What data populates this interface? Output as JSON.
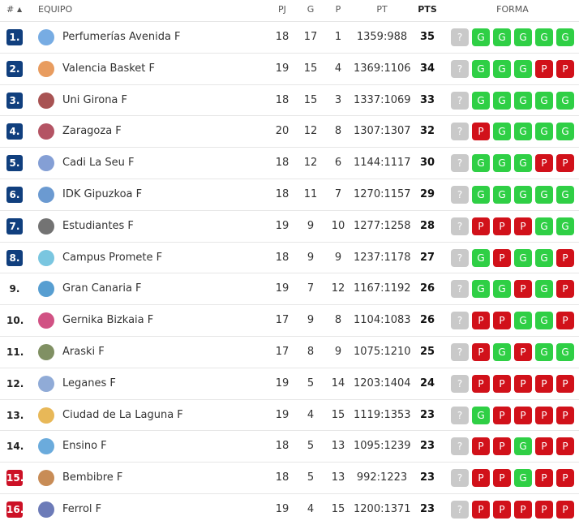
{
  "table": {
    "headers": {
      "rank": "#",
      "team": "EQUIPO",
      "pj": "PJ",
      "g": "G",
      "p": "P",
      "pt": "PT",
      "pts": "PTS",
      "form": "FORMA"
    },
    "form_colors": {
      "G": "#2fcf45",
      "P": "#d1111a",
      "?": "#c9c9c9"
    },
    "rows": [
      {
        "rank": "1.",
        "rank_color": "#103f7e",
        "team": "Perfumerías Avenida F",
        "pj": 18,
        "g": 17,
        "p": 1,
        "pt": "1359:988",
        "pts": 35,
        "form": [
          "?",
          "G",
          "G",
          "G",
          "G",
          "G"
        ]
      },
      {
        "rank": "2.",
        "rank_color": "#103f7e",
        "team": "Valencia Basket F",
        "pj": 19,
        "g": 15,
        "p": 4,
        "pt": "1369:1106",
        "pts": 34,
        "form": [
          "?",
          "G",
          "G",
          "G",
          "P",
          "P"
        ]
      },
      {
        "rank": "3.",
        "rank_color": "#103f7e",
        "team": "Uni Girona F",
        "pj": 18,
        "g": 15,
        "p": 3,
        "pt": "1337:1069",
        "pts": 33,
        "form": [
          "?",
          "G",
          "G",
          "G",
          "G",
          "G"
        ]
      },
      {
        "rank": "4.",
        "rank_color": "#103f7e",
        "team": "Zaragoza F",
        "pj": 20,
        "g": 12,
        "p": 8,
        "pt": "1307:1307",
        "pts": 32,
        "form": [
          "?",
          "P",
          "G",
          "G",
          "G",
          "G"
        ]
      },
      {
        "rank": "5.",
        "rank_color": "#103f7e",
        "team": "Cadi La Seu F",
        "pj": 18,
        "g": 12,
        "p": 6,
        "pt": "1144:1117",
        "pts": 30,
        "form": [
          "?",
          "G",
          "G",
          "G",
          "P",
          "P"
        ]
      },
      {
        "rank": "6.",
        "rank_color": "#103f7e",
        "team": "IDK Gipuzkoa F",
        "pj": 18,
        "g": 11,
        "p": 7,
        "pt": "1270:1157",
        "pts": 29,
        "form": [
          "?",
          "G",
          "G",
          "G",
          "G",
          "G"
        ]
      },
      {
        "rank": "7.",
        "rank_color": "#103f7e",
        "team": "Estudiantes F",
        "pj": 19,
        "g": 9,
        "p": 10,
        "pt": "1277:1258",
        "pts": 28,
        "form": [
          "?",
          "P",
          "P",
          "P",
          "G",
          "G"
        ]
      },
      {
        "rank": "8.",
        "rank_color": "#103f7e",
        "team": "Campus Promete F",
        "pj": 18,
        "g": 9,
        "p": 9,
        "pt": "1237:1178",
        "pts": 27,
        "form": [
          "?",
          "G",
          "P",
          "G",
          "G",
          "P"
        ]
      },
      {
        "rank": "9.",
        "rank_color": null,
        "team": "Gran Canaria F",
        "pj": 19,
        "g": 7,
        "p": 12,
        "pt": "1167:1192",
        "pts": 26,
        "form": [
          "?",
          "G",
          "G",
          "P",
          "G",
          "P"
        ]
      },
      {
        "rank": "10.",
        "rank_color": null,
        "team": "Gernika Bizkaia F",
        "pj": 17,
        "g": 9,
        "p": 8,
        "pt": "1104:1083",
        "pts": 26,
        "form": [
          "?",
          "P",
          "P",
          "G",
          "G",
          "P"
        ]
      },
      {
        "rank": "11.",
        "rank_color": null,
        "team": "Araski F",
        "pj": 17,
        "g": 8,
        "p": 9,
        "pt": "1075:1210",
        "pts": 25,
        "form": [
          "?",
          "P",
          "G",
          "P",
          "G",
          "G"
        ]
      },
      {
        "rank": "12.",
        "rank_color": null,
        "team": "Leganes F",
        "pj": 19,
        "g": 5,
        "p": 14,
        "pt": "1203:1404",
        "pts": 24,
        "form": [
          "?",
          "P",
          "P",
          "P",
          "P",
          "P"
        ]
      },
      {
        "rank": "13.",
        "rank_color": null,
        "team": "Ciudad de La Laguna F",
        "pj": 19,
        "g": 4,
        "p": 15,
        "pt": "1119:1353",
        "pts": 23,
        "form": [
          "?",
          "G",
          "P",
          "P",
          "P",
          "P"
        ]
      },
      {
        "rank": "14.",
        "rank_color": null,
        "team": "Ensino F",
        "pj": 18,
        "g": 5,
        "p": 13,
        "pt": "1095:1239",
        "pts": 23,
        "form": [
          "?",
          "P",
          "P",
          "G",
          "P",
          "P"
        ]
      },
      {
        "rank": "15.",
        "rank_color": "#cc1126",
        "team": "Bembibre F",
        "pj": 18,
        "g": 5,
        "p": 13,
        "pt": "992:1223",
        "pts": 23,
        "form": [
          "?",
          "P",
          "P",
          "G",
          "P",
          "P"
        ]
      },
      {
        "rank": "16.",
        "rank_color": "#cc1126",
        "team": "Ferrol F",
        "pj": 19,
        "g": 4,
        "p": 15,
        "pt": "1200:1371",
        "pts": 23,
        "form": [
          "?",
          "P",
          "P",
          "P",
          "P",
          "P"
        ]
      }
    ]
  }
}
